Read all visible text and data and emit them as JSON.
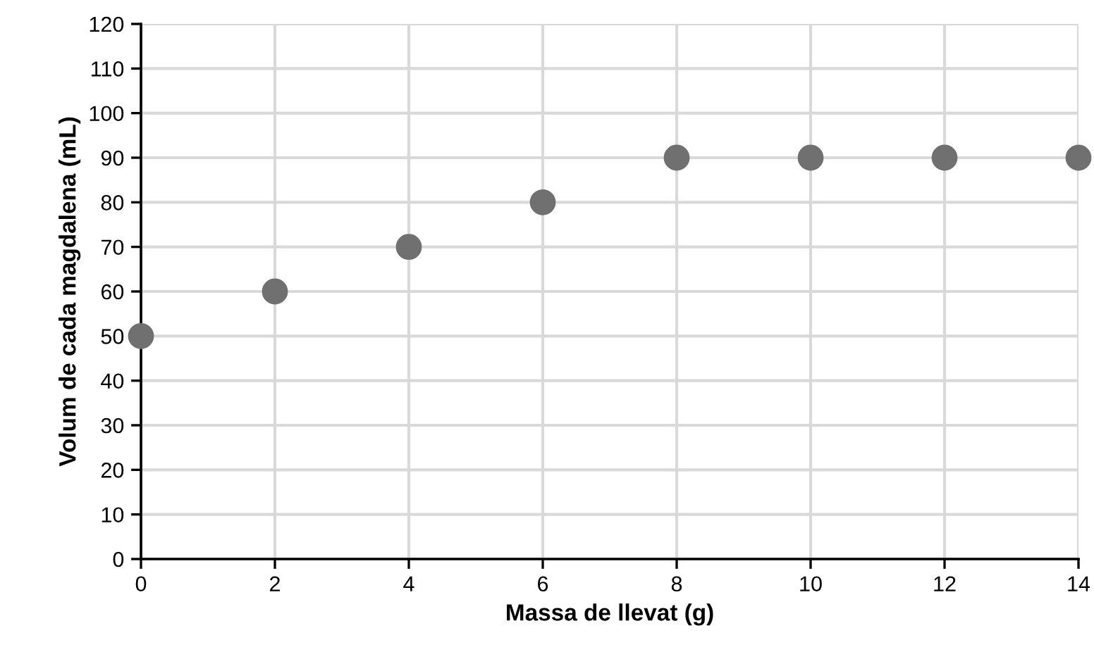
{
  "chart_data": {
    "type": "scatter",
    "xlabel": "Massa de llevat (g)",
    "ylabel": "Volum de cada magdalena (mL)",
    "x": [
      0,
      2,
      4,
      6,
      8,
      10,
      12,
      14
    ],
    "series": [
      {
        "color": "#707070",
        "values": [
          50,
          60,
          70,
          80,
          90,
          90,
          90,
          90
        ]
      }
    ],
    "xlim": [
      0,
      14
    ],
    "xticks": [
      0,
      2,
      4,
      6,
      8,
      10,
      12,
      14
    ],
    "ylim": [
      0,
      120
    ],
    "yticks": [
      0,
      10,
      20,
      30,
      40,
      50,
      60,
      70,
      80,
      90,
      100,
      110,
      120
    ],
    "grid": true,
    "marker": "circle",
    "legend": false
  }
}
